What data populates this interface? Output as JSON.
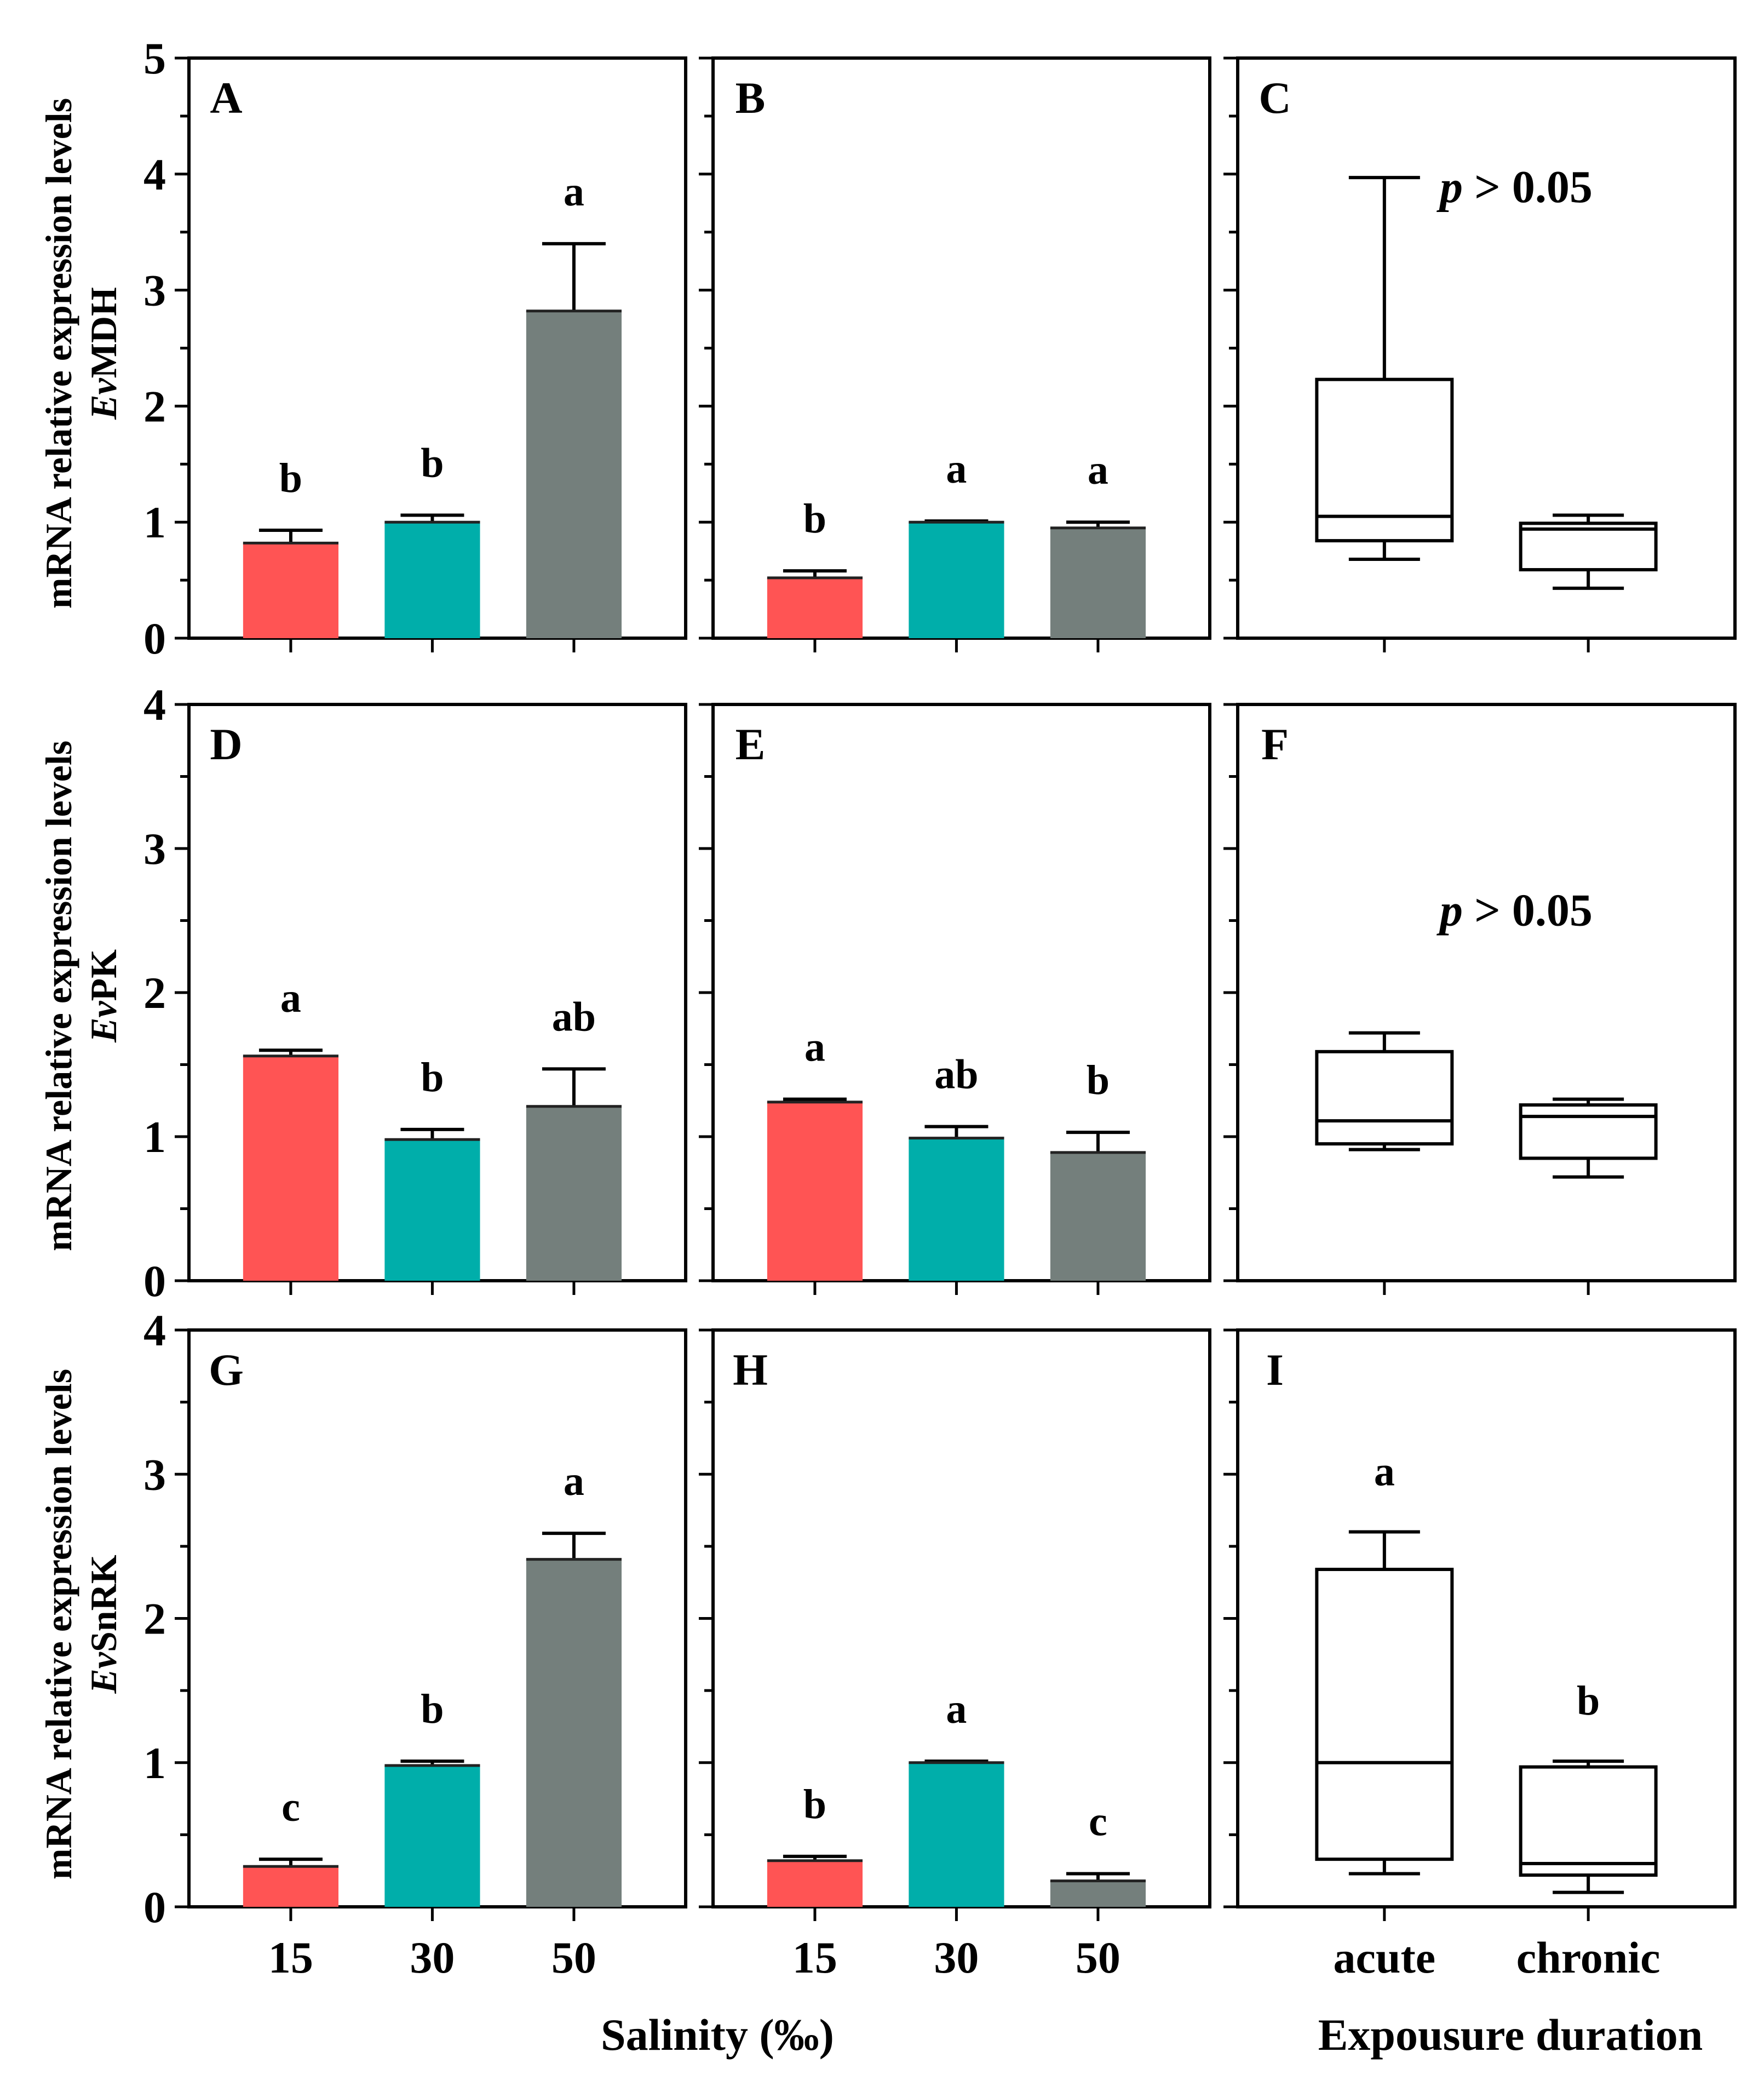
{
  "colors": {
    "c15": "#ff5454",
    "c30": "#00aeaa",
    "c50": "#747f7c",
    "axis": "#000000",
    "box_fill": "#ffffff"
  },
  "rows": [
    {
      "ylabel_line1": "mRNA relative expression levels",
      "gene_prefix": "Ev",
      "gene_name": "MDH"
    },
    {
      "ylabel_line1": "mRNA relative expression levels",
      "gene_prefix": "Ev",
      "gene_name": "PK"
    },
    {
      "ylabel_line1": "mRNA relative expression levels",
      "gene_prefix": "Ev",
      "gene_name": "SnRK"
    }
  ],
  "x_titles": {
    "salinity": "Salinity (‰)",
    "duration": "Expousure duration"
  },
  "chart_data": [
    {
      "panel": "A",
      "type": "bar",
      "gene": "EvMDH",
      "categories": [
        "15",
        "30",
        "50"
      ],
      "values": [
        0.82,
        1.0,
        2.82
      ],
      "errors": [
        0.11,
        0.06,
        0.58
      ],
      "letters": [
        "b",
        "b",
        "a"
      ],
      "ylim": [
        0,
        5
      ],
      "yticks": [
        0,
        1,
        2,
        3,
        4,
        5
      ],
      "xlabel": "",
      "ylabel": "mRNA relative expression levels EvMDH"
    },
    {
      "panel": "B",
      "type": "bar",
      "gene": "EvMDH",
      "categories": [
        "15",
        "30",
        "50"
      ],
      "values": [
        0.52,
        1.0,
        0.95
      ],
      "errors": [
        0.06,
        0.01,
        0.05
      ],
      "letters": [
        "b",
        "a",
        "a"
      ],
      "ylim": [
        0,
        5
      ]
    },
    {
      "panel": "C",
      "type": "box",
      "gene": "EvMDH",
      "categories": [
        "acute",
        "chronic"
      ],
      "boxes": [
        {
          "min": 0.68,
          "q1": 0.84,
          "median": 1.05,
          "q3": 2.23,
          "max": 3.97
        },
        {
          "min": 0.43,
          "q1": 0.59,
          "median": 0.94,
          "q3": 0.99,
          "max": 1.06
        }
      ],
      "annotation": {
        "p": "p",
        "rest": " > 0.05",
        "at": [
          1.5,
          3.9
        ]
      },
      "ylim": [
        0,
        5
      ]
    },
    {
      "panel": "D",
      "type": "bar",
      "gene": "EvPK",
      "categories": [
        "15",
        "30",
        "50"
      ],
      "values": [
        1.56,
        0.98,
        1.21
      ],
      "errors": [
        0.04,
        0.07,
        0.26
      ],
      "letters": [
        "a",
        "b",
        "ab"
      ],
      "ylim": [
        0,
        4
      ],
      "yticks": [
        0,
        1,
        2,
        3,
        4
      ],
      "ylabel": "mRNA relative expression levels EvPK"
    },
    {
      "panel": "E",
      "type": "bar",
      "gene": "EvPK",
      "categories": [
        "15",
        "30",
        "50"
      ],
      "values": [
        1.24,
        0.99,
        0.89
      ],
      "errors": [
        0.02,
        0.08,
        0.14
      ],
      "letters": [
        "a",
        "ab",
        "b"
      ],
      "ylim": [
        0,
        4
      ]
    },
    {
      "panel": "F",
      "type": "box",
      "gene": "EvPK",
      "categories": [
        "acute",
        "chronic"
      ],
      "boxes": [
        {
          "min": 0.91,
          "q1": 0.95,
          "median": 1.11,
          "q3": 1.59,
          "max": 1.72
        },
        {
          "min": 0.72,
          "q1": 0.85,
          "median": 1.14,
          "q3": 1.22,
          "max": 1.26
        }
      ],
      "annotation": {
        "p": "p",
        "rest": " > 0.05",
        "at": [
          1.4,
          2.58
        ]
      },
      "ylim": [
        0,
        4
      ]
    },
    {
      "panel": "G",
      "type": "bar",
      "gene": "EvSnRK",
      "categories": [
        "15",
        "30",
        "50"
      ],
      "values": [
        0.28,
        0.98,
        2.41
      ],
      "errors": [
        0.05,
        0.03,
        0.18
      ],
      "letters": [
        "c",
        "b",
        "a"
      ],
      "ylim": [
        0,
        4
      ],
      "yticks": [
        0,
        1,
        2,
        3,
        4
      ],
      "xlabel": "Salinity (‰)",
      "ylabel": "mRNA relative expression levels EvSnRK"
    },
    {
      "panel": "H",
      "type": "bar",
      "gene": "EvSnRK",
      "categories": [
        "15",
        "30",
        "50"
      ],
      "values": [
        0.32,
        1.0,
        0.18
      ],
      "errors": [
        0.03,
        0.01,
        0.05
      ],
      "letters": [
        "b",
        "a",
        "c"
      ],
      "ylim": [
        0,
        4
      ],
      "xlabel": "Salinity (‰)"
    },
    {
      "panel": "I",
      "type": "box",
      "gene": "EvSnRK",
      "categories": [
        "acute",
        "chronic"
      ],
      "boxes": [
        {
          "min": 0.23,
          "q1": 0.33,
          "median": 1.0,
          "q3": 2.34,
          "max": 2.6
        },
        {
          "min": 0.1,
          "q1": 0.22,
          "median": 0.3,
          "q3": 0.97,
          "max": 1.01
        }
      ],
      "letters": [
        "a",
        "b"
      ],
      "ylim": [
        0,
        4
      ],
      "xlabel": "Expousure duration"
    }
  ]
}
